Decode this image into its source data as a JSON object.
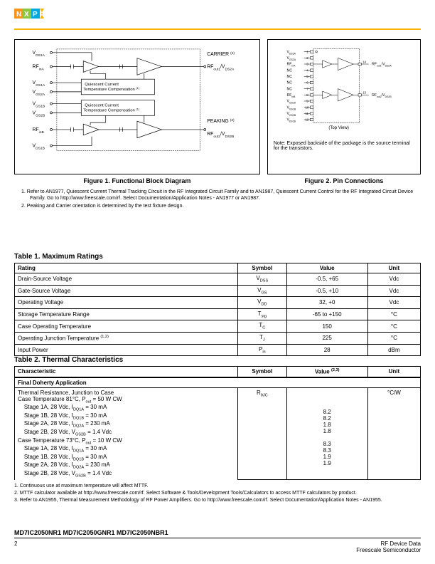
{
  "logo_colors": {
    "orange": "#f7941d",
    "green": "#8dc63f",
    "blue": "#00a9e0",
    "yellow": "#f7b500"
  },
  "fig1": {
    "labels": {
      "vds1a": "V",
      "vds1a_sub": "DS1A",
      "rfina": "RF",
      "rfina_sub": "inA",
      "vgs1a": "V",
      "vgs1a_sub": "GS1A",
      "vgs2a": "V",
      "vgs2a_sub": "GS2A",
      "vgs1b": "V",
      "vgs1b_sub": "GS1B",
      "vgs2b": "V",
      "vgs2b_sub": "GS2B",
      "rfinb": "RF",
      "rfinb_sub": "inB",
      "vds1b": "V",
      "vds1b_sub": "DS1B",
      "carrier": "CARRIER",
      "peaking": "PEAKING",
      "rfout1": "RF",
      "rfout1_sub": "out1",
      "vds2a": "/V",
      "vds2a_sub": "DS2A",
      "rfout2": "RF",
      "rfout2_sub": "out2",
      "vds2b": "/V",
      "vds2b_sub": "DS2B",
      "qcomp": "Quiescent Current Temperature Compensation",
      "note_sup": "(2)",
      "comp_sup": "(1)"
    },
    "caption": "Figure 1. Functional Block Diagram"
  },
  "fig2": {
    "pins": [
      "V",
      "V",
      "RF",
      "NC",
      "NC",
      "NC",
      "NC",
      "RF",
      "V",
      "V",
      "V",
      "V"
    ],
    "pins_sub": [
      "DS1A",
      "GS2A",
      "inA",
      "",
      "",
      "",
      "",
      "inB",
      "GS1A",
      "GS1B",
      "GS2B",
      "DS1B"
    ],
    "pin_nums": [
      "1",
      "2",
      "3",
      "4",
      "5",
      "6",
      "7",
      "8",
      "9",
      "10",
      "11",
      "12"
    ],
    "right_pins": [
      "14",
      "13"
    ],
    "right_labels": [
      "RF",
      "RF"
    ],
    "right_sub": [
      "out1",
      "out2"
    ],
    "right_suffix": [
      "/V",
      "/V"
    ],
    "right_suffix_sub": [
      "DS2A",
      "DS2B"
    ],
    "top_view": "(Top View)",
    "note": "Note: Exposed backside of the package is the source terminal for the transistors.",
    "caption": "Figure 2. Pin Connections"
  },
  "notes": [
    "1. Refer to AN1977, Quiescent Current Thermal Tracking Circuit in the RF Integrated Circuit Family and to AN1987, Quiescent Current Control for the RF Integrated Circuit Device Family. Go to http://www.freescale.com/rf. Select Documentation/Application Notes - AN1977 or AN1987.",
    "2. Peaking and Carrier orientation is determined by the test fixture design."
  ],
  "table1": {
    "title": "Table 1. Maximum Ratings",
    "headers": [
      "Rating",
      "Symbol",
      "Value",
      "Unit"
    ],
    "rows": [
      {
        "rating": "Drain-Source Voltage",
        "symbol": "V",
        "symbol_sub": "DSS",
        "value": "-0.5, +65",
        "unit": "Vdc"
      },
      {
        "rating": "Gate-Source Voltage",
        "symbol": "V",
        "symbol_sub": "GS",
        "value": "-0.5, +10",
        "unit": "Vdc"
      },
      {
        "rating": "Operating Voltage",
        "symbol": "V",
        "symbol_sub": "DD",
        "value": "32, +0",
        "unit": "Vdc"
      },
      {
        "rating": "Storage Temperature Range",
        "symbol": "T",
        "symbol_sub": "stg",
        "value": "-65 to +150",
        "unit": "°C"
      },
      {
        "rating": "Case Operating Temperature",
        "symbol": "T",
        "symbol_sub": "C",
        "value": "150",
        "unit": "°C"
      },
      {
        "rating": "Operating Junction Temperature",
        "rating_sup": "(1,2)",
        "symbol": "T",
        "symbol_sub": "J",
        "value": "225",
        "unit": "°C"
      },
      {
        "rating": "Input Power",
        "symbol": "P",
        "symbol_sub": "in",
        "value": "28",
        "unit": "dBm"
      }
    ]
  },
  "table2": {
    "title": "Table 2. Thermal Characteristics",
    "headers": [
      "Characteristic",
      "Symbol",
      "Value",
      "Unit"
    ],
    "value_sup": "(2,3)",
    "section": "Final Doherty Application",
    "thermal_row": {
      "label": "Thermal Resistance, Junction to Case",
      "symbol": "R",
      "symbol_sub": "θJC",
      "unit": "°C/W",
      "cases": [
        {
          "label": "Case Temperature 81°C, P",
          "sub": "out",
          "suffix": " = 50 W CW",
          "value": ""
        },
        {
          "label": "    Stage 1A, 28 Vdc, I",
          "sub": "DQ1A",
          "suffix": " = 30 mA",
          "value": "8.2"
        },
        {
          "label": "    Stage 1B, 28 Vdc, I",
          "sub": "DQ1B",
          "suffix": " = 30 mA",
          "value": "8.2"
        },
        {
          "label": "    Stage 2A, 28 Vdc, I",
          "sub": "DQ2A",
          "suffix": " = 230 mA",
          "value": "1.8"
        },
        {
          "label": "    Stage 2B, 28 Vdc, V",
          "sub": "GS2B",
          "suffix": " = 1.4 Vdc",
          "value": "1.8"
        },
        {
          "label": "Case Temperature 73°C, P",
          "sub": "out",
          "suffix": " = 10 W CW",
          "value": ""
        },
        {
          "label": "    Stage 1A, 28 Vdc, I",
          "sub": "DQ1A",
          "suffix": " = 30 mA",
          "value": "8.3"
        },
        {
          "label": "    Stage 1B, 28 Vdc, I",
          "sub": "DQ1B",
          "suffix": " = 30 mA",
          "value": "8.3"
        },
        {
          "label": "    Stage 2A, 28 Vdc, I",
          "sub": "DQ2A",
          "suffix": " = 230 mA",
          "value": "1.9"
        },
        {
          "label": "    Stage 2B, 28 Vdc, V",
          "sub": "GS2B",
          "suffix": " = 1.4 Vdc",
          "value": "1.9"
        }
      ]
    },
    "footnotes": [
      "1. Continuous use at maximum temperature will affect MTTF.",
      "2. MTTF calculator available at http://www.freescale.com/rf. Select Software & Tools/Development Tools/Calculators to access MTTF calculators by product.",
      "3. Refer to AN1955, Thermal Measurement Methodology of RF Power Amplifiers. Go to http://www.freescale.com/rf. Select Documentation/Application Notes - AN1955."
    ]
  },
  "footer": {
    "parts": "MD7IC2050NR1 MD7IC2050GNR1 MD7IC2050NBR1",
    "page": "2",
    "right1": "RF Device Data",
    "right2": "Freescale Semiconductor"
  }
}
